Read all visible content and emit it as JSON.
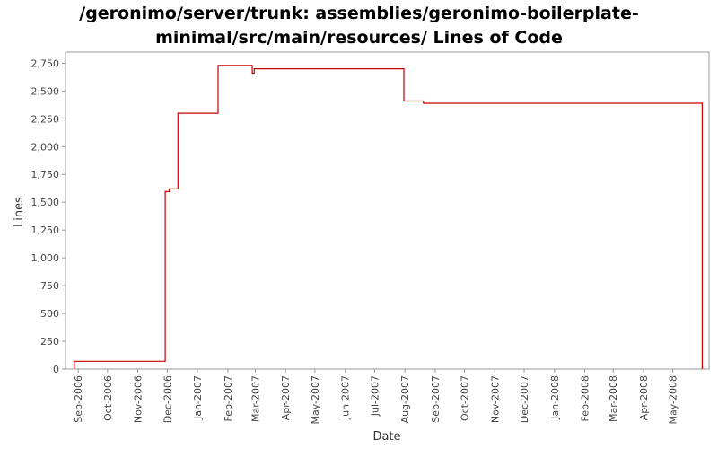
{
  "chart_data": {
    "type": "line",
    "title_line1": "/geronimo/server/trunk: assemblies/geronimo-boilerplate-",
    "title_line2": "minimal/src/main/resources/ Lines of Code",
    "xlabel": "Date",
    "ylabel": "Lines",
    "ylim": [
      0,
      2850
    ],
    "xlim": [
      "2006-08-19",
      "2008-06-07"
    ],
    "step": "post",
    "grid": false,
    "legend": "none",
    "line_color": "#cc0000",
    "y_ticks": [
      {
        "value": 0,
        "label": "0"
      },
      {
        "value": 250,
        "label": "250"
      },
      {
        "value": 500,
        "label": "500"
      },
      {
        "value": 750,
        "label": "750"
      },
      {
        "value": 1000,
        "label": "1,000"
      },
      {
        "value": 1250,
        "label": "1,250"
      },
      {
        "value": 1500,
        "label": "1,500"
      },
      {
        "value": 1750,
        "label": "1,750"
      },
      {
        "value": 2000,
        "label": "2,000"
      },
      {
        "value": 2250,
        "label": "2,250"
      },
      {
        "value": 2500,
        "label": "2,500"
      },
      {
        "value": 2750,
        "label": "2,750"
      }
    ],
    "x_ticks": [
      {
        "date": "2006-09-01",
        "label": "Sep-2006"
      },
      {
        "date": "2006-10-01",
        "label": "Oct-2006"
      },
      {
        "date": "2006-11-01",
        "label": "Nov-2006"
      },
      {
        "date": "2006-12-01",
        "label": "Dec-2006"
      },
      {
        "date": "2007-01-01",
        "label": "Jan-2007"
      },
      {
        "date": "2007-02-01",
        "label": "Feb-2007"
      },
      {
        "date": "2007-03-01",
        "label": "Mar-2007"
      },
      {
        "date": "2007-04-01",
        "label": "Apr-2007"
      },
      {
        "date": "2007-05-01",
        "label": "May-2007"
      },
      {
        "date": "2007-06-01",
        "label": "Jun-2007"
      },
      {
        "date": "2007-07-01",
        "label": "Jul-2007"
      },
      {
        "date": "2007-08-01",
        "label": "Aug-2007"
      },
      {
        "date": "2007-09-01",
        "label": "Sep-2007"
      },
      {
        "date": "2007-10-01",
        "label": "Oct-2007"
      },
      {
        "date": "2007-11-01",
        "label": "Nov-2007"
      },
      {
        "date": "2007-12-01",
        "label": "Dec-2007"
      },
      {
        "date": "2008-01-01",
        "label": "Jan-2008"
      },
      {
        "date": "2008-02-01",
        "label": "Feb-2008"
      },
      {
        "date": "2008-03-01",
        "label": "Mar-2008"
      },
      {
        "date": "2008-04-01",
        "label": "Apr-2008"
      },
      {
        "date": "2008-05-01",
        "label": "May-2008"
      }
    ],
    "points": [
      {
        "x": "2006-08-28",
        "y": 0
      },
      {
        "x": "2006-08-28",
        "y": 70
      },
      {
        "x": "2006-11-29",
        "y": 70
      },
      {
        "x": "2006-11-29",
        "y": 1595
      },
      {
        "x": "2006-12-03",
        "y": 1620
      },
      {
        "x": "2006-12-12",
        "y": 2300
      },
      {
        "x": "2007-01-22",
        "y": 2730
      },
      {
        "x": "2007-02-26",
        "y": 2660
      },
      {
        "x": "2007-02-28",
        "y": 2700
      },
      {
        "x": "2007-07-31",
        "y": 2410
      },
      {
        "x": "2007-08-20",
        "y": 2390
      },
      {
        "x": "2008-05-31",
        "y": 2390
      },
      {
        "x": "2008-05-31",
        "y": 0
      }
    ]
  }
}
